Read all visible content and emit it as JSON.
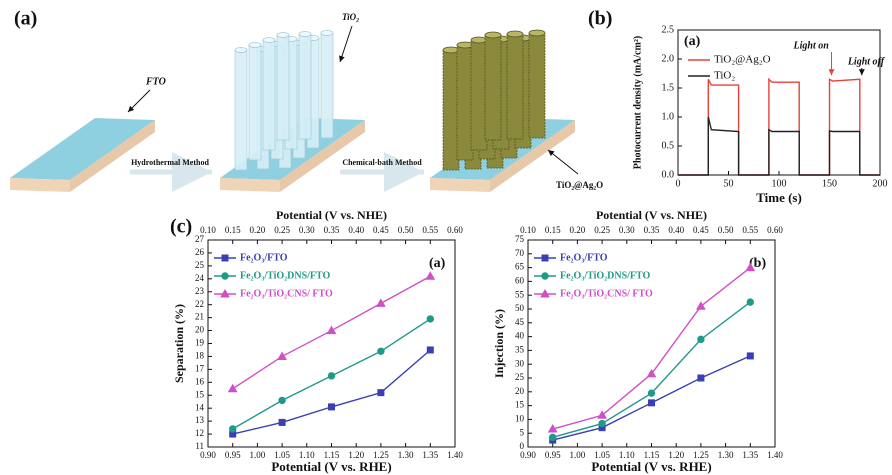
{
  "schematic": {
    "panel_label": "(a)",
    "fto": "FTO",
    "tio2": "TiO₂",
    "product": "TiO₂@Ag₂O",
    "step1": "Hydrothermal Method",
    "step2": "Chemical-bath Method"
  },
  "panel_labels": {
    "b": "(b)",
    "c": "(c)"
  },
  "chart_data": [
    {
      "type": "line",
      "panel_label": "(a)",
      "x_label": "Time (s)",
      "y_label": "Photocurrent density (mA/cm²)",
      "x": [
        0,
        30,
        30,
        33,
        60,
        60,
        90,
        90,
        93,
        120,
        120,
        150,
        150,
        153,
        180,
        180,
        200
      ],
      "series": [
        {
          "name": "TiO₂@Ag₂O",
          "color": "#e8403a",
          "values": [
            0,
            0,
            1.65,
            1.55,
            1.55,
            0,
            0,
            1.65,
            1.6,
            1.6,
            0,
            0,
            1.65,
            1.62,
            1.65,
            0,
            0
          ]
        },
        {
          "name": "TiO₂",
          "color": "#222222",
          "values": [
            0,
            0,
            1.0,
            0.78,
            0.75,
            0,
            0,
            0.78,
            0.75,
            0.75,
            0,
            0,
            0.76,
            0.75,
            0.75,
            0,
            0
          ]
        }
      ],
      "xlim": [
        0,
        200
      ],
      "xticks": [
        0,
        50,
        100,
        150,
        200
      ],
      "ylim": [
        0,
        2.5
      ],
      "yticks": [
        {
          "value": 0,
          "label": "0.0"
        },
        0.5,
        {
          "value": 1,
          "label": "1.0"
        },
        1.5,
        {
          "value": 2,
          "label": "2.0"
        },
        2.5
      ],
      "legend": "top-left",
      "annotations": [
        "Light on",
        "Light off"
      ]
    },
    {
      "type": "line",
      "panel_label": "(a)",
      "x_label": "Potential (V vs. RHE)",
      "x2_label": "Potential  (V vs. NHE)",
      "y_label": "Separation (%)",
      "x": [
        0.95,
        1.05,
        1.15,
        1.25,
        1.35
      ],
      "series": [
        {
          "name": "Fe₂O₃/FTO",
          "color": "#3a3fb5",
          "marker": "square",
          "values": [
            12.0,
            12.9,
            14.1,
            15.2,
            18.5
          ]
        },
        {
          "name": "Fe₂O₃/TiO₂DNS/FTO",
          "color": "#1f9a8a",
          "marker": "circle",
          "values": [
            12.4,
            14.6,
            16.5,
            18.4,
            20.9
          ]
        },
        {
          "name": "Fe₂O₃/TiO₂CNS/ FTO",
          "color": "#d04ec8",
          "marker": "triangle",
          "values": [
            15.5,
            18.0,
            20.0,
            22.1,
            24.2
          ]
        }
      ],
      "xlim": [
        0.9,
        1.4
      ],
      "xticks": [
        {
          "value": 0.9,
          "label": "0.90"
        },
        0.95,
        {
          "value": 1,
          "label": "1.00"
        },
        1.05,
        {
          "value": 1.1,
          "label": "1.10"
        },
        1.15,
        {
          "value": 1.2,
          "label": "1.20"
        },
        1.25,
        {
          "value": 1.3,
          "label": "1.30"
        },
        1.35,
        {
          "value": 1.4,
          "label": "1.40"
        }
      ],
      "x2lim": [
        0.1,
        0.6
      ],
      "x2ticks": [
        {
          "value": 0.1,
          "label": "0.10"
        },
        0.15,
        {
          "value": 0.2,
          "label": "0.20"
        },
        0.25,
        {
          "value": 0.3,
          "label": "0.30"
        },
        0.35,
        {
          "value": 0.4,
          "label": "0.40"
        },
        0.45,
        {
          "value": 0.5,
          "label": "0.50"
        },
        0.55,
        {
          "value": 0.6,
          "label": "0.60"
        }
      ],
      "ylim": [
        11,
        27
      ],
      "yticks": [
        11,
        12,
        13,
        14,
        15,
        16,
        17,
        18,
        19,
        20,
        21,
        22,
        23,
        24,
        25,
        26,
        27
      ],
      "legend": "top-left"
    },
    {
      "type": "line",
      "panel_label": "(b)",
      "x_label": "Potential (V vs. RHE)",
      "x2_label": "Potential  (V vs. NHE)",
      "y_label": "Injection (%)",
      "x": [
        0.95,
        1.05,
        1.15,
        1.25,
        1.35
      ],
      "series": [
        {
          "name": "Fe₂O₃/FTO",
          "color": "#3a3fb5",
          "marker": "square",
          "values": [
            2.5,
            7,
            16,
            25,
            33
          ]
        },
        {
          "name": "Fe₂O₃/TiO₂DNS/FTO",
          "color": "#1f9a8a",
          "marker": "circle",
          "values": [
            3.5,
            8.5,
            19.5,
            39,
            52.5
          ]
        },
        {
          "name": "Fe₂O₃/TiO₂CNS/ FTO",
          "color": "#d04ec8",
          "marker": "triangle",
          "values": [
            6.5,
            11.5,
            26.5,
            51,
            65
          ]
        }
      ],
      "xlim": [
        0.9,
        1.4
      ],
      "xticks": [
        {
          "value": 0.9,
          "label": "0.90"
        },
        0.95,
        {
          "value": 1,
          "label": "1.00"
        },
        1.05,
        {
          "value": 1.1,
          "label": "1.10"
        },
        1.15,
        {
          "value": 1.2,
          "label": "1.20"
        },
        1.25,
        {
          "value": 1.3,
          "label": "1.30"
        },
        1.35,
        {
          "value": 1.4,
          "label": "1.40"
        }
      ],
      "x2lim": [
        0.1,
        0.6
      ],
      "x2ticks": [
        {
          "value": 0.1,
          "label": "0.10"
        },
        0.15,
        {
          "value": 0.2,
          "label": "0.20"
        },
        0.25,
        {
          "value": 0.3,
          "label": "0.30"
        },
        0.35,
        {
          "value": 0.4,
          "label": "0.40"
        },
        0.45,
        {
          "value": 0.5,
          "label": "0.50"
        },
        0.55,
        {
          "value": 0.6,
          "label": "0.60"
        }
      ],
      "ylim": [
        0,
        75
      ],
      "yticks": [
        0,
        5,
        10,
        15,
        20,
        25,
        30,
        35,
        40,
        45,
        50,
        55,
        60,
        65,
        70,
        75
      ],
      "legend": "top-left"
    }
  ]
}
